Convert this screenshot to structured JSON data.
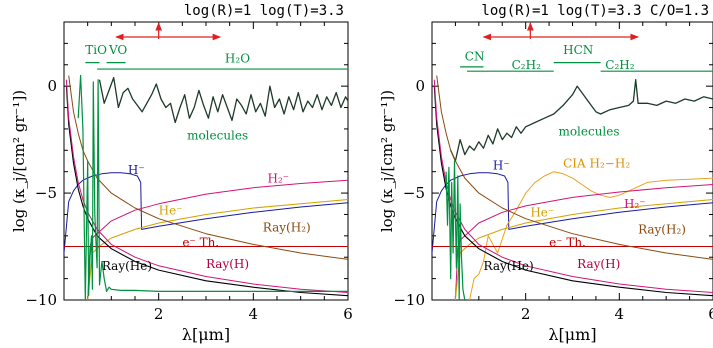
{
  "chart_data": [
    {
      "type": "line",
      "header": "log(R)=1  log(T)=3.3",
      "xlabel": "λ[μm]",
      "ylabel": "log (κ_j/[cm² gr⁻¹])",
      "xlim": [
        0,
        6
      ],
      "ylim": [
        -10,
        3
      ],
      "xticks": [
        2,
        4,
        6
      ],
      "yticks": [
        0,
        -5,
        -10
      ],
      "arrow": {
        "x_from": 1.1,
        "x_to": 3.3,
        "y": 2.3,
        "marker_x": 2.0
      },
      "bands": [
        {
          "label": "TiO",
          "x0": 0.45,
          "x1": 0.75,
          "y": 1.1,
          "lx": 0.45,
          "ly": 1.5
        },
        {
          "label": "VO",
          "x0": 0.9,
          "x1": 1.3,
          "y": 1.1,
          "lx": 0.95,
          "ly": 1.5
        },
        {
          "label": "H₂O",
          "x0": 0.7,
          "x1": 6.0,
          "y": 0.8,
          "lx": 3.4,
          "ly": 1.1
        }
      ],
      "labels": [
        {
          "key": "molecules",
          "text": "molecules",
          "x": 2.6,
          "y": -2.5,
          "color": "#009040"
        },
        {
          "key": "hminus",
          "text": "H⁻",
          "x": 1.35,
          "y": -4.1,
          "color": "#1a1aa0"
        },
        {
          "key": "h2minus",
          "text": "H₂⁻",
          "x": 4.3,
          "y": -4.5,
          "color": "#d0147a"
        },
        {
          "key": "heminus",
          "text": "He⁻",
          "x": 2.0,
          "y": -6.0,
          "color": "#d4a000"
        },
        {
          "key": "eth",
          "text": "e⁻ Th.",
          "x": 2.5,
          "y": -7.5,
          "color": "#c00000"
        },
        {
          "key": "rayh2",
          "text": "Ray(H₂)",
          "x": 4.2,
          "y": -6.8,
          "color": "#8b4a10"
        },
        {
          "key": "rayhe",
          "text": "Ray(He)",
          "x": 0.8,
          "y": -8.6,
          "color": "#000000"
        },
        {
          "key": "rayh",
          "text": "Ray(H)",
          "x": 3.0,
          "y": -8.5,
          "color": "#b0003a"
        }
      ],
      "series": [
        {
          "key": "molecules",
          "color": "#1e3a2a",
          "width": 1.3,
          "x": [
            0.75,
            0.85,
            0.95,
            1.05,
            1.15,
            1.25,
            1.35,
            1.45,
            1.55,
            1.65,
            1.75,
            1.85,
            1.95,
            2.05,
            2.15,
            2.25,
            2.35,
            2.45,
            2.55,
            2.65,
            2.75,
            2.85,
            2.95,
            3.05,
            3.15,
            3.25,
            3.35,
            3.45,
            3.55,
            3.65,
            3.75,
            3.85,
            3.95,
            4.05,
            4.15,
            4.25,
            4.35,
            4.45,
            4.55,
            4.65,
            4.75,
            4.85,
            4.95,
            5.05,
            5.15,
            5.25,
            5.35,
            5.45,
            5.55,
            5.65,
            5.75,
            5.85,
            5.95,
            6.0
          ],
          "y": [
            0.3,
            -0.8,
            -0.2,
            0.4,
            -1.0,
            -0.3,
            -0.1,
            -0.6,
            -0.9,
            -1.2,
            -0.8,
            -0.4,
            0.1,
            -0.6,
            -1.0,
            -0.8,
            -1.7,
            -1.0,
            -0.4,
            -1.5,
            -1.0,
            -0.2,
            -0.9,
            -1.5,
            -0.5,
            -1.2,
            -0.4,
            -1.0,
            -1.6,
            -0.6,
            -0.9,
            -1.3,
            -0.4,
            -1.2,
            -0.8,
            -1.4,
            0.0,
            -1.0,
            -0.6,
            -1.3,
            -0.5,
            -1.1,
            -0.3,
            -1.2,
            -0.7,
            -1.0,
            -0.4,
            -1.1,
            -0.5,
            -0.9,
            -0.3,
            -1.0,
            -0.5,
            -0.7
          ]
        },
        {
          "key": "hminus",
          "color": "#1a1aa0",
          "width": 1.0,
          "x": [
            0.0,
            0.1,
            0.2,
            0.3,
            0.4,
            0.6,
            0.8,
            1.0,
            1.2,
            1.4,
            1.55,
            1.62,
            1.64,
            2.0,
            3.0,
            4.0,
            5.0,
            6.0
          ],
          "y": [
            -7.8,
            -5.4,
            -4.9,
            -4.6,
            -4.4,
            -4.2,
            -4.1,
            -4.05,
            -4.05,
            -4.1,
            -4.2,
            -4.5,
            -6.7,
            -6.55,
            -6.2,
            -5.9,
            -5.65,
            -5.45
          ]
        },
        {
          "key": "h2minus",
          "color": "#d0147a",
          "width": 1.0,
          "x": [
            0.5,
            0.55,
            0.6,
            0.8,
            1.0,
            1.5,
            2.0,
            3.0,
            4.0,
            5.0,
            6.0
          ],
          "y": [
            -10.0,
            -7.5,
            -7.1,
            -6.7,
            -6.3,
            -5.8,
            -5.5,
            -5.05,
            -4.75,
            -4.55,
            -4.4
          ]
        },
        {
          "key": "heminus",
          "color": "#d4a000",
          "width": 1.0,
          "x": [
            0.5,
            0.6,
            0.8,
            1.0,
            1.5,
            2.0,
            3.0,
            4.0,
            5.0,
            6.0
          ],
          "y": [
            -10.0,
            -7.8,
            -7.4,
            -7.1,
            -6.7,
            -6.4,
            -6.0,
            -5.7,
            -5.5,
            -5.3
          ]
        },
        {
          "key": "eth",
          "color": "#c00000",
          "width": 1.0,
          "x": [
            0.0,
            6.0
          ],
          "y": [
            -7.5,
            -7.5
          ]
        },
        {
          "key": "rayh2",
          "color": "#8b4a10",
          "width": 1.0,
          "x": [
            0.1,
            0.2,
            0.3,
            0.4,
            0.5,
            0.7,
            1.0,
            1.5,
            2.0,
            3.0,
            4.0,
            5.0,
            6.0
          ],
          "y": [
            0.5,
            -1.2,
            -2.2,
            -3.0,
            -3.5,
            -4.3,
            -5.0,
            -5.7,
            -6.2,
            -6.9,
            -7.4,
            -7.8,
            -8.1
          ]
        },
        {
          "key": "rayhe",
          "color": "#000000",
          "width": 1.1,
          "x": [
            0.05,
            0.1,
            0.2,
            0.3,
            0.4,
            0.5,
            0.7,
            1.0,
            1.5,
            2.0,
            3.0,
            4.0,
            5.0,
            6.0
          ],
          "y": [
            0.0,
            -1.8,
            -3.6,
            -4.8,
            -5.6,
            -6.2,
            -7.0,
            -7.6,
            -8.2,
            -8.6,
            -9.1,
            -9.4,
            -9.65,
            -9.8
          ]
        },
        {
          "key": "rayh",
          "color": "#d0147a",
          "width": 1.0,
          "x": [
            0.05,
            0.1,
            0.2,
            0.3,
            0.4,
            0.5,
            0.7,
            1.0,
            1.5,
            2.0,
            3.0,
            4.0,
            5.0,
            6.0
          ],
          "y": [
            0.3,
            -1.5,
            -3.3,
            -4.5,
            -5.3,
            -5.9,
            -6.7,
            -7.4,
            -8.0,
            -8.4,
            -8.9,
            -9.25,
            -9.5,
            -9.65
          ]
        },
        {
          "key": "atomic",
          "color": "#009040",
          "width": 1.2,
          "x": [
            0.3,
            0.35,
            0.4,
            0.45,
            0.5,
            0.52,
            0.55,
            0.58,
            0.6,
            0.62,
            0.65,
            0.7,
            0.72,
            0.75,
            0.8,
            0.85,
            0.9,
            0.95,
            1.0,
            1.2,
            1.5,
            2.0,
            3.0,
            4.0,
            5.0,
            6.0
          ],
          "y": [
            -1.5,
            0.5,
            -2.0,
            -10.0,
            -3.5,
            -9.8,
            -8.0,
            -7.0,
            -9.5,
            0.2,
            -6.0,
            -8.5,
            0.3,
            -9.3,
            -8.2,
            -9.0,
            -9.6,
            -9.4,
            -9.5,
            -9.55,
            -9.55,
            -9.6,
            -9.6,
            -9.6,
            -9.6,
            -9.6
          ]
        }
      ]
    },
    {
      "type": "line",
      "header": "log(R)=1  log(T)=3.3   C/O=1.3",
      "xlabel": "λ[μm]",
      "ylabel": "log (κ_j/[cm² gr⁻¹])",
      "xlim": [
        0,
        6
      ],
      "ylim": [
        -10,
        3
      ],
      "xticks": [
        2,
        4,
        6
      ],
      "yticks": [
        0,
        -5,
        -10
      ],
      "arrow": {
        "x_from": 1.1,
        "x_to": 4.4,
        "y": 2.3,
        "marker_x": 2.1
      },
      "bands": [
        {
          "label": "CN",
          "x0": 0.6,
          "x1": 1.1,
          "y": 0.9,
          "lx": 0.7,
          "ly": 1.2
        },
        {
          "label": "HCN",
          "x0": 2.6,
          "x1": 3.6,
          "y": 1.1,
          "lx": 2.8,
          "ly": 1.5
        },
        {
          "label": "C₂H₂",
          "x0": 0.75,
          "x1": 2.6,
          "y": 0.7,
          "lx": 1.7,
          "ly": 0.8
        },
        {
          "label": "C₂H₂",
          "x0": 3.6,
          "x1": 6.0,
          "y": 0.7,
          "lx": 3.7,
          "ly": 0.8
        }
      ],
      "labels": [
        {
          "key": "molecules",
          "text": "molecules",
          "x": 2.7,
          "y": -2.3,
          "color": "#009040"
        },
        {
          "key": "hminus",
          "text": "H⁻",
          "x": 1.3,
          "y": -3.9,
          "color": "#1a1aa0"
        },
        {
          "key": "cia",
          "text": "CIA H₂−H₂",
          "x": 2.8,
          "y": -3.8,
          "color": "#e09000"
        },
        {
          "key": "heminus",
          "text": "He⁻",
          "x": 2.1,
          "y": -6.1,
          "color": "#d4a000"
        },
        {
          "key": "h2minus",
          "text": "H₂⁻",
          "x": 4.1,
          "y": -5.7,
          "color": "#d0147a"
        },
        {
          "key": "eth",
          "text": "e⁻ Th.",
          "x": 2.5,
          "y": -7.5,
          "color": "#c00000"
        },
        {
          "key": "rayh2",
          "text": "Ray(H₂)",
          "x": 4.4,
          "y": -6.9,
          "color": "#8b4a10"
        },
        {
          "key": "rayhe",
          "text": "Ray(He)",
          "x": 1.1,
          "y": -8.6,
          "color": "#000000"
        },
        {
          "key": "rayh",
          "text": "Ray(H)",
          "x": 3.1,
          "y": -8.5,
          "color": "#b0003a"
        }
      ],
      "series": [
        {
          "key": "molecules",
          "color": "#1e3a2a",
          "width": 1.3,
          "x": [
            0.4,
            0.5,
            0.6,
            0.7,
            0.8,
            0.9,
            1.0,
            1.1,
            1.2,
            1.3,
            1.4,
            1.5,
            1.6,
            1.7,
            1.8,
            1.9,
            2.0,
            2.2,
            2.4,
            2.6,
            2.8,
            3.0,
            3.1,
            3.2,
            3.3,
            3.4,
            3.5,
            3.6,
            3.8,
            4.0,
            4.2,
            4.3,
            4.35,
            4.4,
            4.6,
            4.8,
            5.0,
            5.2,
            5.4,
            5.6,
            5.8,
            6.0
          ],
          "y": [
            -3.0,
            -3.5,
            -2.5,
            -3.2,
            -2.8,
            -3.0,
            -2.6,
            -2.9,
            -2.3,
            -2.7,
            -2.0,
            -2.5,
            -2.2,
            -2.4,
            -1.9,
            -2.2,
            -1.9,
            -1.7,
            -1.5,
            -1.3,
            -0.9,
            -0.4,
            0.0,
            -0.3,
            -0.6,
            -0.9,
            -1.2,
            -1.3,
            -1.1,
            -1.0,
            -0.9,
            -0.7,
            0.3,
            -0.8,
            -0.8,
            -0.9,
            -0.7,
            -0.8,
            -0.6,
            -0.7,
            -0.5,
            -0.6
          ]
        },
        {
          "key": "hminus",
          "color": "#1a1aa0",
          "width": 1.0,
          "x": [
            0.0,
            0.1,
            0.2,
            0.3,
            0.4,
            0.6,
            0.8,
            1.0,
            1.2,
            1.4,
            1.55,
            1.62,
            1.64,
            2.0,
            3.0,
            4.0,
            5.0,
            6.0
          ],
          "y": [
            -7.8,
            -5.4,
            -4.9,
            -4.6,
            -4.4,
            -4.2,
            -4.1,
            -4.05,
            -4.05,
            -4.1,
            -4.2,
            -4.5,
            -6.7,
            -6.55,
            -6.2,
            -5.9,
            -5.65,
            -5.45
          ]
        },
        {
          "key": "cia",
          "color": "#f0a020",
          "width": 1.0,
          "x": [
            0.8,
            0.9,
            1.0,
            1.1,
            1.2,
            1.4,
            1.6,
            1.8,
            2.0,
            2.2,
            2.4,
            2.6,
            2.8,
            3.0,
            3.2,
            3.4,
            3.6,
            3.8,
            4.0,
            4.3,
            4.6,
            5.0,
            5.5,
            6.0
          ],
          "y": [
            -10.0,
            -9.0,
            -8.8,
            -8.2,
            -7.0,
            -7.8,
            -6.5,
            -5.8,
            -5.0,
            -4.5,
            -4.2,
            -4.0,
            -4.1,
            -4.3,
            -4.6,
            -4.9,
            -5.1,
            -5.2,
            -5.1,
            -4.8,
            -4.5,
            -4.4,
            -4.35,
            -4.3
          ]
        },
        {
          "key": "h2minus",
          "color": "#d0147a",
          "width": 1.0,
          "x": [
            0.5,
            0.55,
            0.6,
            0.8,
            1.0,
            1.5,
            2.0,
            3.0,
            4.0,
            5.0,
            6.0
          ],
          "y": [
            -10.0,
            -7.6,
            -7.2,
            -6.8,
            -6.4,
            -5.9,
            -5.6,
            -5.2,
            -4.95,
            -4.75,
            -4.6
          ]
        },
        {
          "key": "heminus",
          "color": "#d4a000",
          "width": 1.0,
          "x": [
            0.5,
            0.6,
            0.8,
            1.0,
            1.5,
            2.0,
            3.0,
            4.0,
            5.0,
            6.0
          ],
          "y": [
            -10.0,
            -7.8,
            -7.4,
            -7.1,
            -6.7,
            -6.4,
            -6.0,
            -5.7,
            -5.5,
            -5.3
          ]
        },
        {
          "key": "eth",
          "color": "#c00000",
          "width": 1.0,
          "x": [
            0.0,
            6.0
          ],
          "y": [
            -7.5,
            -7.5
          ]
        },
        {
          "key": "rayh2",
          "color": "#8b4a10",
          "width": 1.0,
          "x": [
            0.1,
            0.2,
            0.3,
            0.4,
            0.5,
            0.7,
            1.0,
            1.5,
            2.0,
            3.0,
            4.0,
            5.0,
            6.0
          ],
          "y": [
            0.5,
            -1.2,
            -2.2,
            -3.0,
            -3.5,
            -4.3,
            -5.0,
            -5.7,
            -6.2,
            -6.9,
            -7.4,
            -7.8,
            -8.1
          ]
        },
        {
          "key": "rayhe",
          "color": "#000000",
          "width": 1.1,
          "x": [
            0.05,
            0.1,
            0.2,
            0.3,
            0.4,
            0.5,
            0.7,
            1.0,
            1.5,
            2.0,
            3.0,
            4.0,
            5.0,
            6.0
          ],
          "y": [
            0.0,
            -1.8,
            -3.6,
            -4.8,
            -5.6,
            -6.2,
            -7.0,
            -7.6,
            -8.2,
            -8.6,
            -9.1,
            -9.4,
            -9.65,
            -9.8
          ]
        },
        {
          "key": "rayh",
          "color": "#d0147a",
          "width": 1.0,
          "x": [
            0.05,
            0.1,
            0.2,
            0.3,
            0.4,
            0.5,
            0.7,
            1.0,
            1.5,
            2.0,
            3.0,
            4.0,
            5.0,
            6.0
          ],
          "y": [
            0.3,
            -1.5,
            -3.3,
            -4.5,
            -5.3,
            -5.9,
            -6.7,
            -7.4,
            -8.0,
            -8.4,
            -8.9,
            -9.25,
            -9.5,
            -9.65
          ]
        },
        {
          "key": "atomic",
          "color": "#009040",
          "width": 1.2,
          "x": [
            0.3,
            0.33,
            0.36,
            0.4,
            0.42,
            0.45,
            0.48,
            0.5,
            0.52,
            0.55,
            0.58,
            0.6,
            0.63,
            0.66,
            0.7
          ],
          "y": [
            -4.0,
            -6.5,
            -3.8,
            -9.0,
            -4.5,
            -7.8,
            -3.5,
            -6.0,
            -8.5,
            -4.2,
            -10.0,
            -5.5,
            -8.0,
            -9.5,
            -10.0
          ]
        }
      ]
    }
  ]
}
